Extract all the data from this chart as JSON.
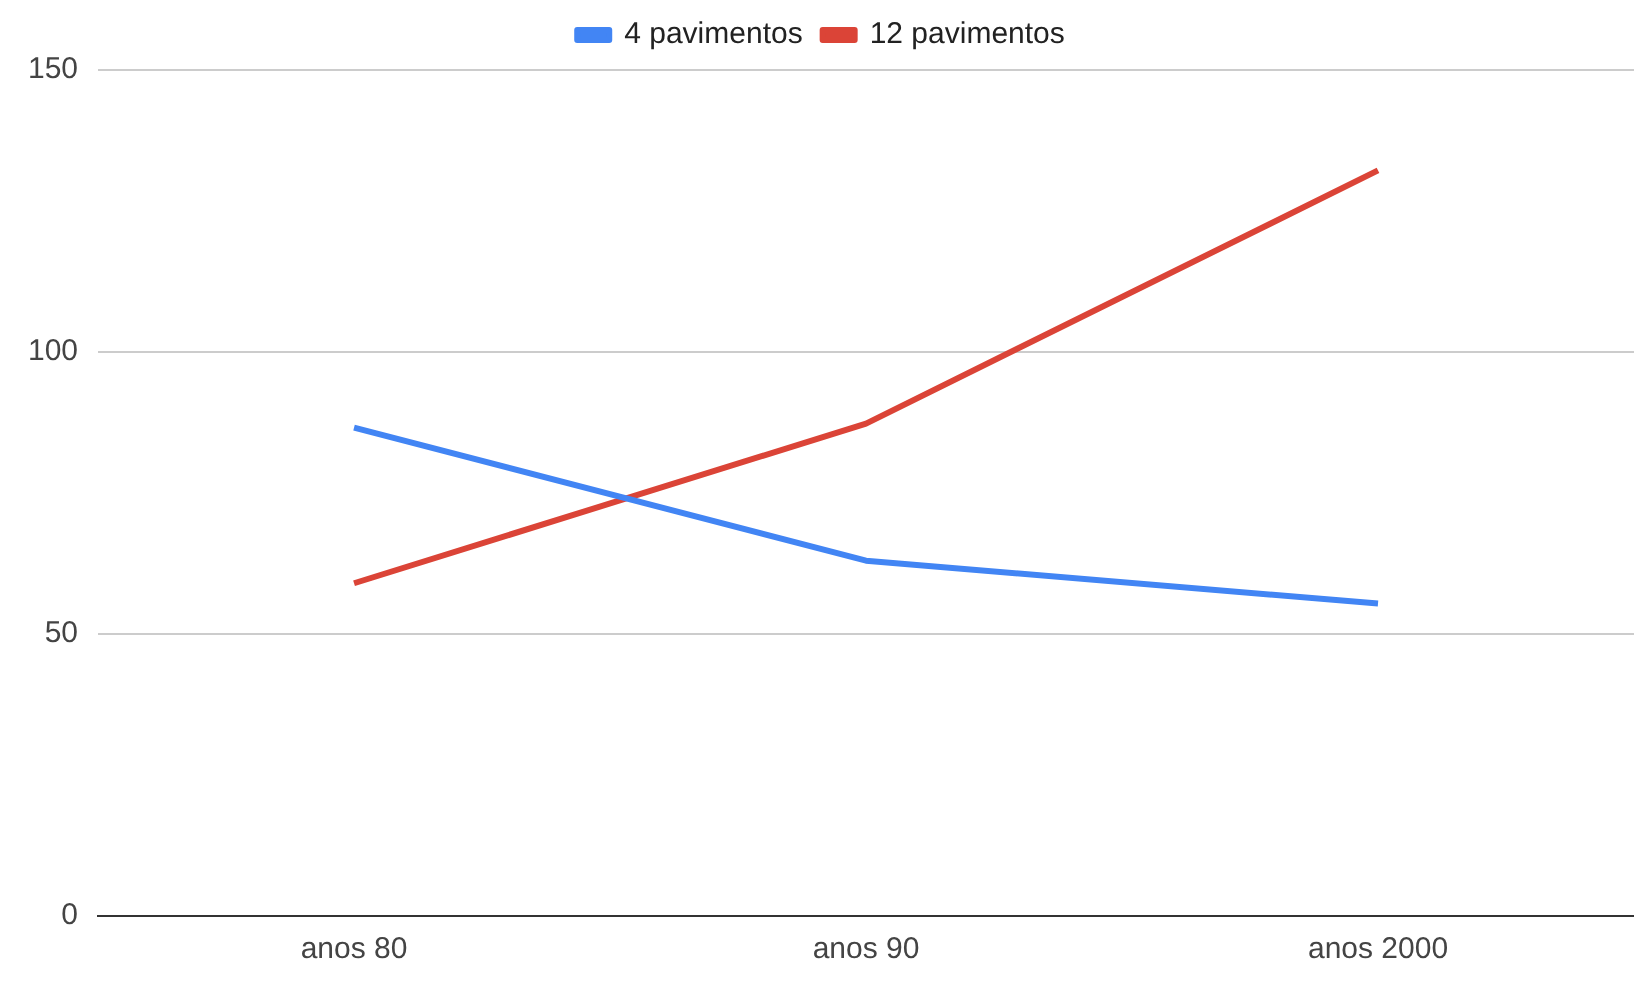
{
  "chart_data": {
    "type": "line",
    "categories": [
      "anos 80",
      "anos 90",
      "anos 2000"
    ],
    "series": [
      {
        "name": "4 pavimentos",
        "color": "#4285f4",
        "values": [
          86.6,
          63,
          55.4
        ]
      },
      {
        "name": "12 pavimentos",
        "color": "#db4437",
        "values": [
          59,
          87.3,
          132.2
        ]
      }
    ],
    "ylim": [
      0,
      150
    ],
    "yticks": [
      0,
      50,
      100,
      150
    ],
    "grid": "y",
    "legend": "top",
    "marker": "none",
    "line_style": "solid"
  }
}
